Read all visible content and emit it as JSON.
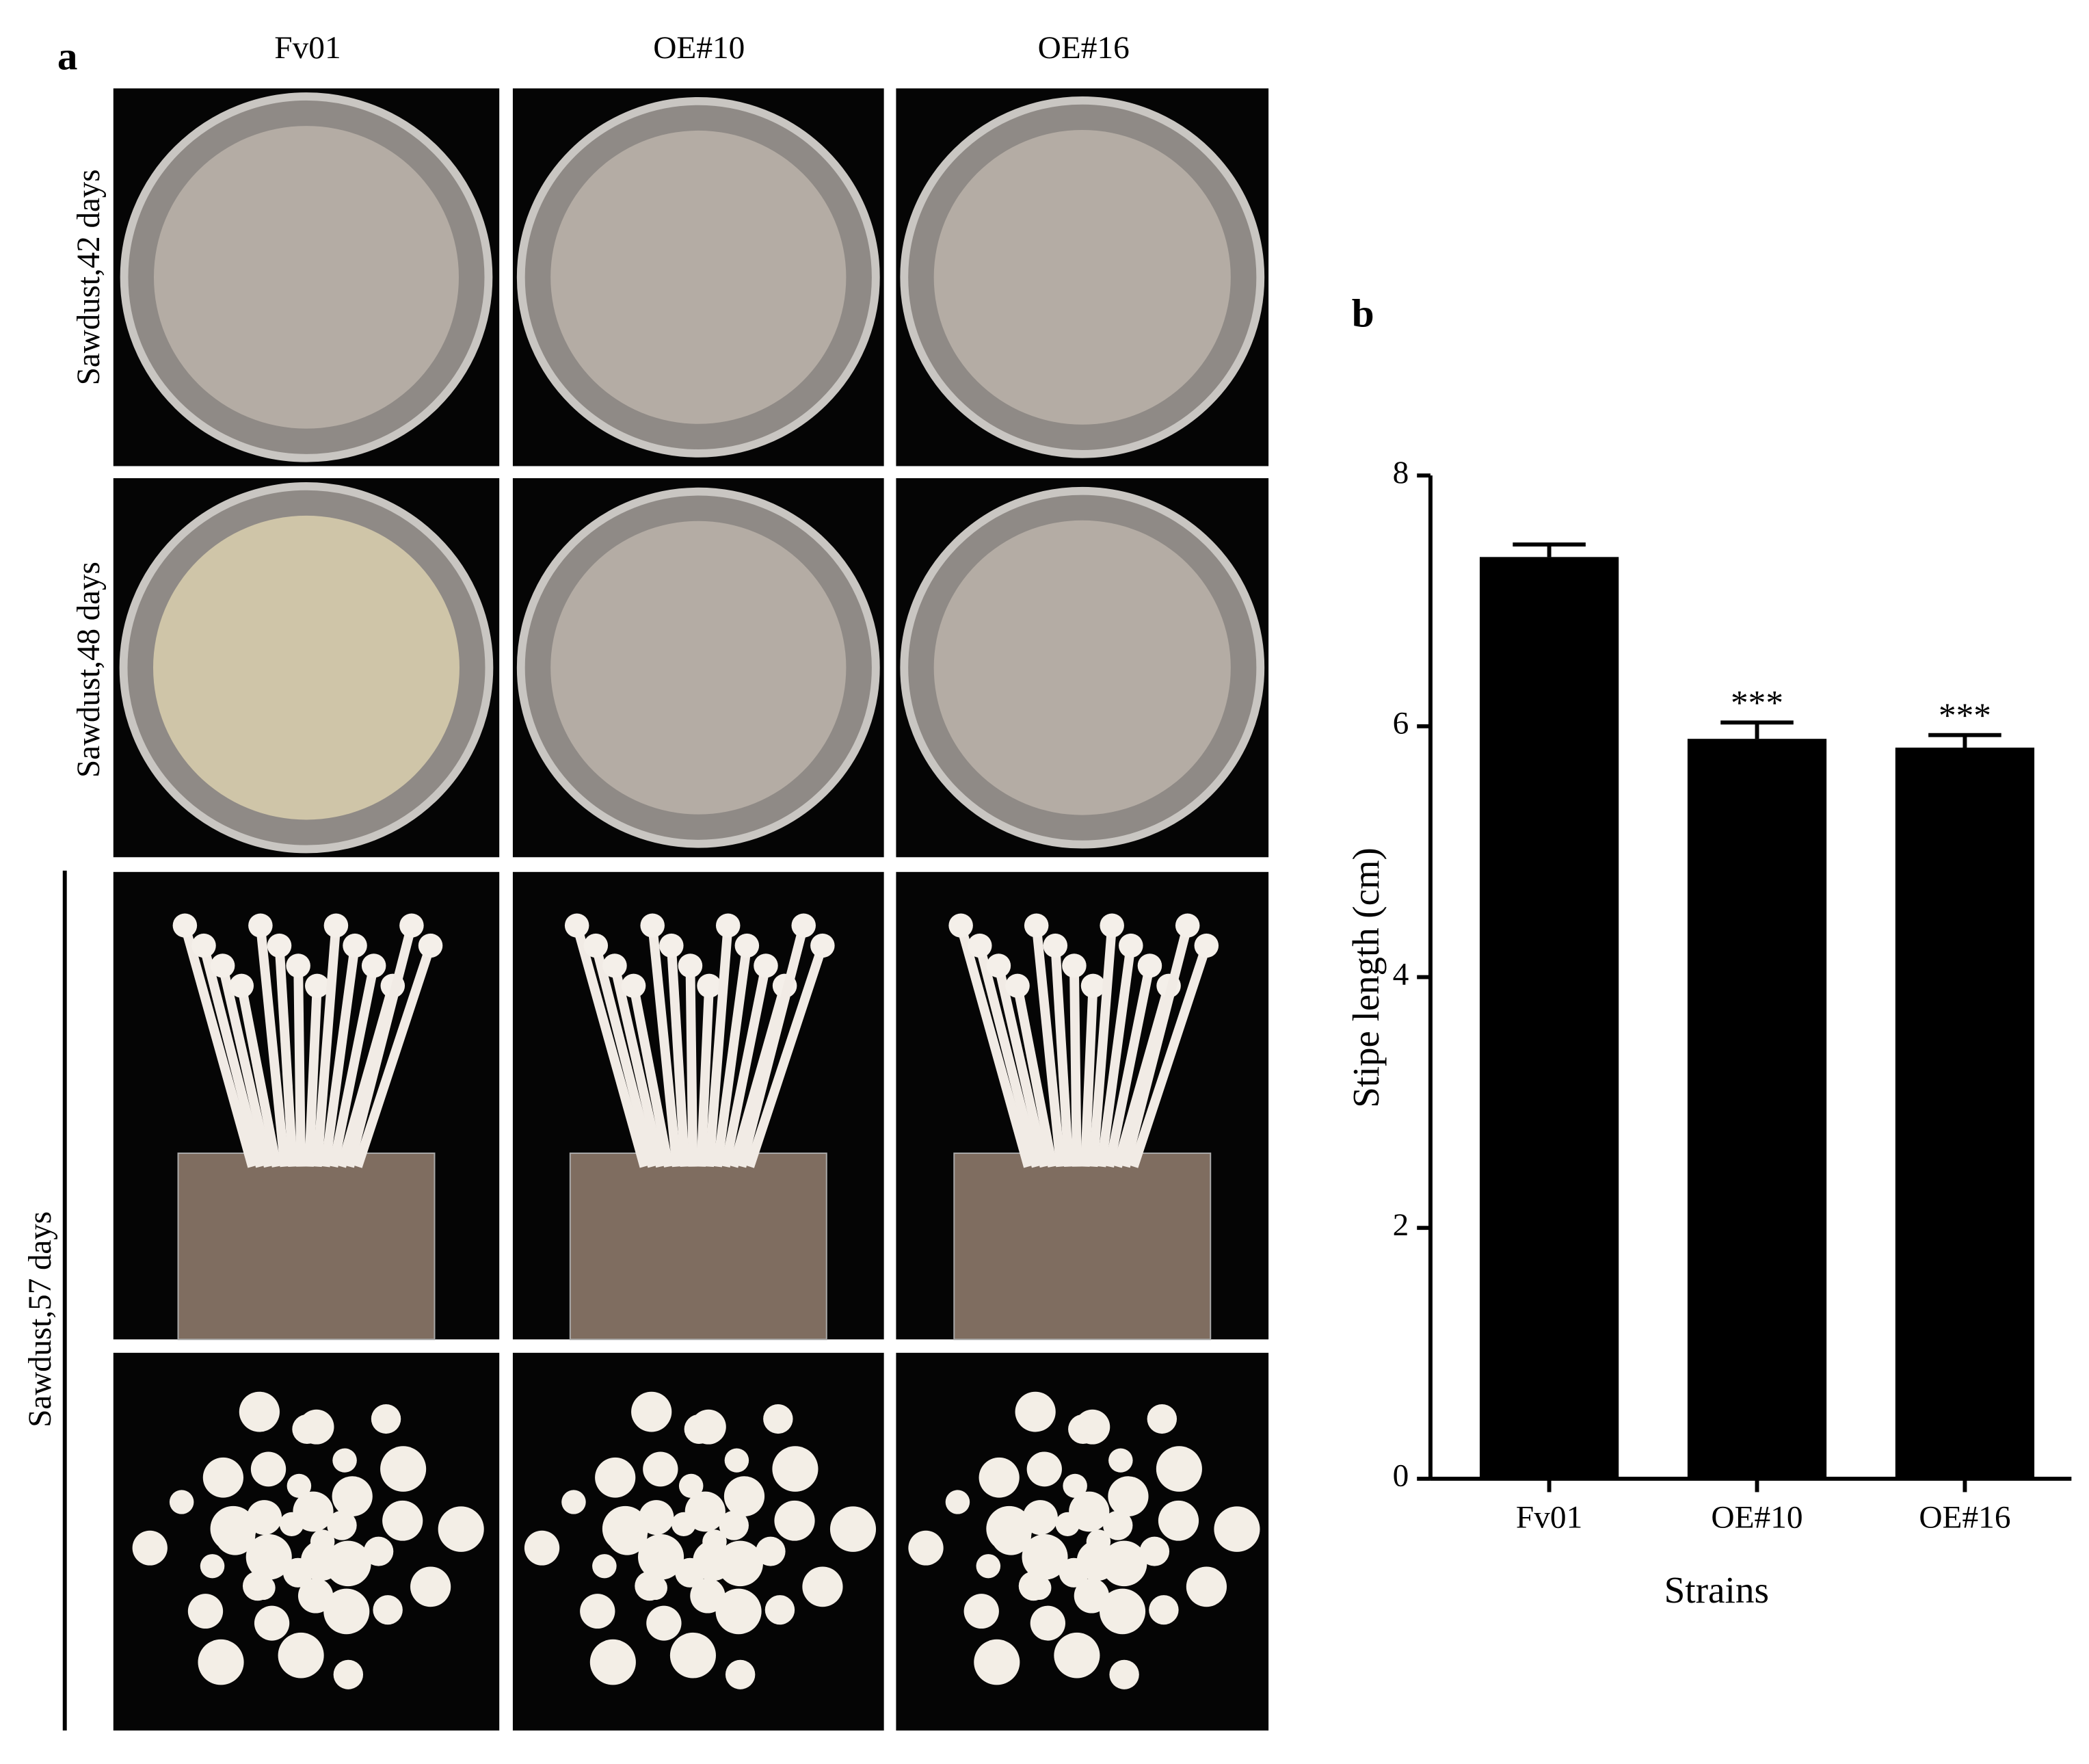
{
  "panel_a": {
    "label": "a",
    "columns": [
      "Fv01",
      "OE#10",
      "OE#16"
    ],
    "rows": [
      "Sawdust,42 days",
      "Sawdust,48 days",
      "Sawdust,57 days"
    ]
  },
  "chart_data": {
    "type": "bar",
    "label": "b",
    "y_label": "Stipe length (cm)",
    "x_label": "Strains",
    "categories": [
      "Fv01",
      "OE#10",
      "OE#16"
    ],
    "values": [
      7.35,
      5.9,
      5.83
    ],
    "errors": [
      0.1,
      0.13,
      0.1
    ],
    "annotations": [
      null,
      "***",
      "***"
    ],
    "color": "#000000",
    "ylim": [
      0,
      8
    ],
    "yticks": [
      0,
      2,
      4,
      6,
      8
    ],
    "grid": false
  }
}
